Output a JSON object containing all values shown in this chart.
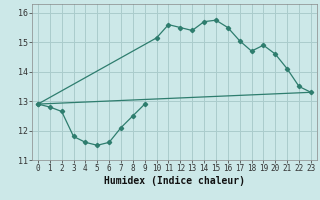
{
  "xlabel": "Humidex (Indice chaleur)",
  "bg_color": "#cce8e8",
  "grid_color": "#aacccc",
  "line_color": "#2e7d6e",
  "xlim": [
    -0.5,
    23.5
  ],
  "ylim": [
    11,
    16.3
  ],
  "yticks": [
    11,
    12,
    13,
    14,
    15,
    16
  ],
  "xticks": [
    0,
    1,
    2,
    3,
    4,
    5,
    6,
    7,
    8,
    9,
    10,
    11,
    12,
    13,
    14,
    15,
    16,
    17,
    18,
    19,
    20,
    21,
    22,
    23
  ],
  "line1_x": [
    0,
    1,
    2,
    3,
    4,
    5,
    6,
    7,
    8,
    9
  ],
  "line1_y": [
    12.9,
    12.8,
    12.65,
    11.8,
    11.6,
    11.5,
    11.6,
    12.1,
    12.5,
    12.9
  ],
  "line2_x": [
    0,
    10,
    11,
    12,
    13,
    14,
    15,
    16,
    17,
    18,
    19,
    20,
    21,
    22,
    23
  ],
  "line2_y": [
    12.9,
    15.15,
    15.6,
    15.5,
    15.4,
    15.7,
    15.75,
    15.5,
    15.05,
    14.7,
    14.9,
    14.6,
    14.1,
    13.5,
    13.3
  ],
  "line3_x": [
    0,
    23
  ],
  "line3_y": [
    12.9,
    13.3
  ],
  "xtick_fontsize": 5.5,
  "ytick_fontsize": 6.0,
  "xlabel_fontsize": 7.0
}
